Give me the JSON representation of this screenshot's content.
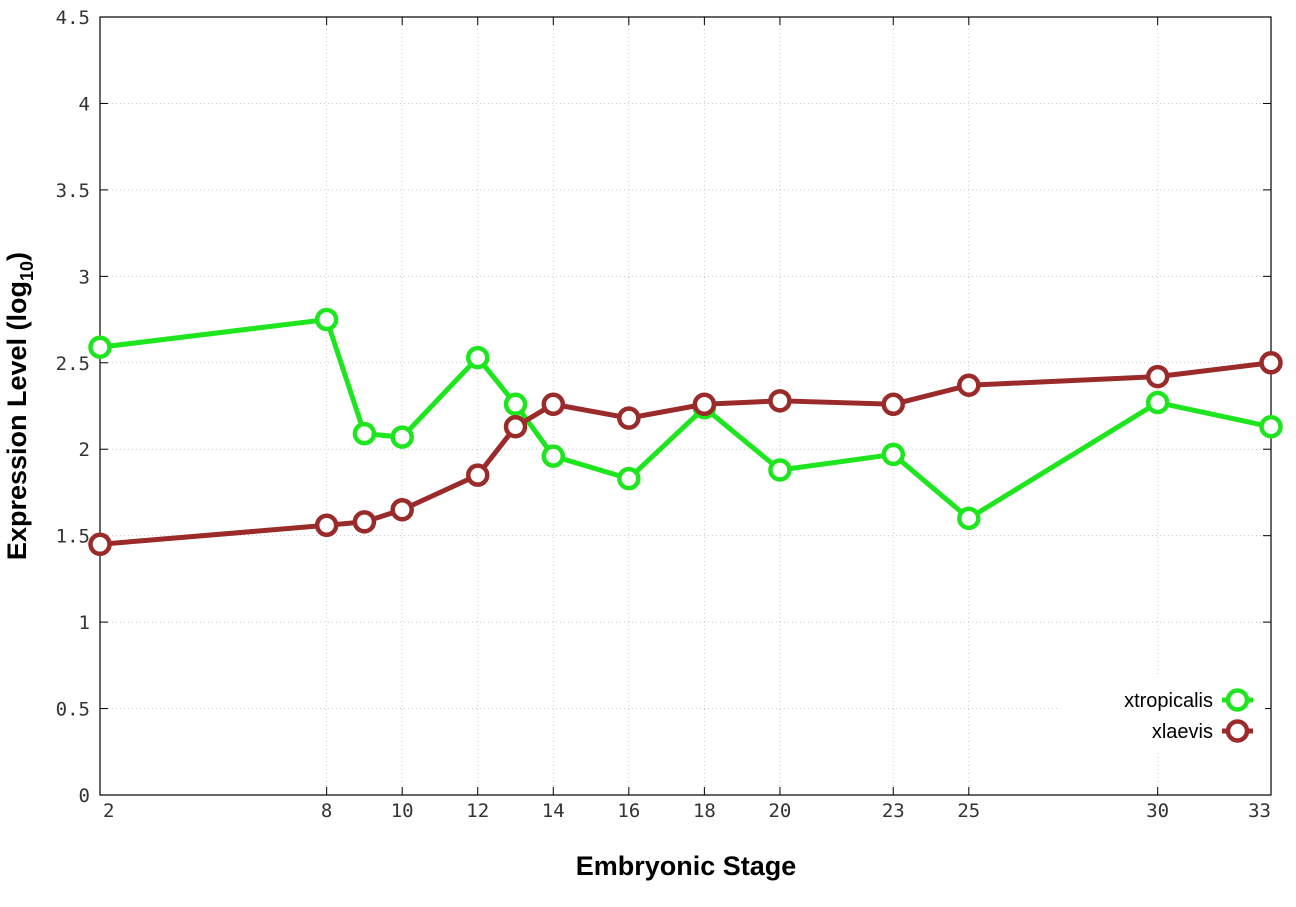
{
  "chart_data": {
    "type": "line",
    "xlabel": "Embryonic Stage",
    "ylabel_main": "Expression Level (log",
    "ylabel_sub": "10",
    "ylabel_close": ")",
    "x_ticks": [
      2,
      8,
      10,
      12,
      14,
      16,
      18,
      20,
      23,
      25,
      30,
      33
    ],
    "y_ticks": [
      "0",
      "0.5",
      "1",
      "1.5",
      "2",
      "2.5",
      "3",
      "3.5",
      "4",
      "4.5"
    ],
    "ylim": [
      0,
      4.5
    ],
    "xlim": [
      2,
      33
    ],
    "grid": true,
    "legend_position": "bottom-right",
    "series": [
      {
        "name": "xtropicalis",
        "color": "#1ee61e",
        "x": [
          2,
          8,
          9,
          10,
          12,
          13,
          14,
          16,
          18,
          20,
          23,
          25,
          30,
          33
        ],
        "y": [
          2.59,
          2.75,
          2.09,
          2.07,
          2.53,
          2.26,
          1.96,
          1.83,
          2.24,
          1.88,
          1.97,
          1.6,
          2.27,
          2.13
        ]
      },
      {
        "name": "xlaevis",
        "color": "#9b2a2a",
        "x": [
          2,
          8,
          9,
          10,
          12,
          13,
          14,
          16,
          18,
          20,
          23,
          25,
          30,
          33
        ],
        "y": [
          1.45,
          1.56,
          1.58,
          1.65,
          1.85,
          2.13,
          2.26,
          2.18,
          2.26,
          2.28,
          2.26,
          2.37,
          2.42,
          2.5
        ]
      }
    ]
  }
}
